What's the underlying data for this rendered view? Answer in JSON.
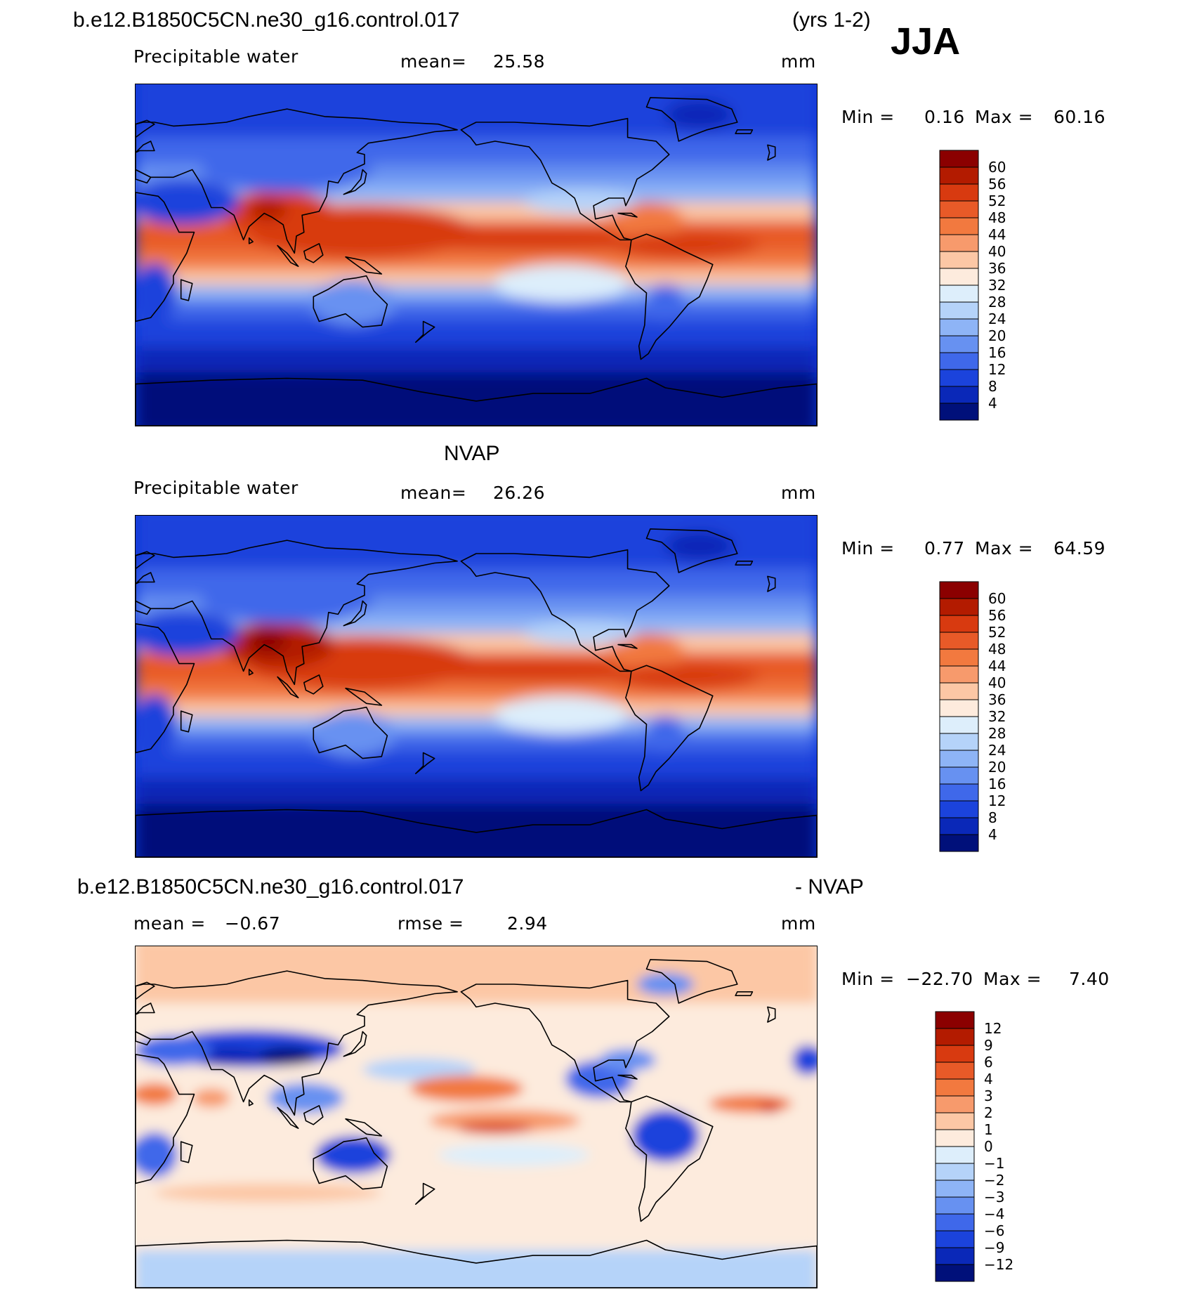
{
  "header": {
    "case_name": "b.e12.B1850C5CN.ne30_g16.control.017",
    "years": "(yrs 1-2)",
    "season": "JJA"
  },
  "panels": [
    {
      "id": "model",
      "title": "",
      "field_label": "Precipitable water",
      "stat_label": "mean=",
      "stat_value": "25.58",
      "units": "mm",
      "min_label": "Min =",
      "min_value": "0.16",
      "max_label": "Max =",
      "max_value": "60.16",
      "colorbar": {
        "labels": [
          "60",
          "56",
          "52",
          "48",
          "44",
          "40",
          "36",
          "32",
          "28",
          "24",
          "20",
          "16",
          "12",
          "8",
          "4"
        ],
        "colors": [
          "#8b0000",
          "#b31b00",
          "#d83a10",
          "#e85a28",
          "#f2793f",
          "#f79a6c",
          "#fcc7a5",
          "#fdebdd",
          "#ddeefb",
          "#b5d3f9",
          "#8eb4f6",
          "#6791f1",
          "#3f68ea",
          "#1b43dc",
          "#0a28b8",
          "#00107a"
        ]
      }
    },
    {
      "id": "obs",
      "title": "NVAP",
      "field_label": "Precipitable water",
      "stat_label": "mean=",
      "stat_value": "26.26",
      "units": "mm",
      "min_label": "Min =",
      "min_value": "0.77",
      "max_label": "Max =",
      "max_value": "64.59",
      "colorbar": {
        "labels": [
          "60",
          "56",
          "52",
          "48",
          "44",
          "40",
          "36",
          "32",
          "28",
          "24",
          "20",
          "16",
          "12",
          "8",
          "4"
        ],
        "colors": [
          "#8b0000",
          "#b31b00",
          "#d83a10",
          "#e85a28",
          "#f2793f",
          "#f79a6c",
          "#fcc7a5",
          "#fdebdd",
          "#ddeefb",
          "#b5d3f9",
          "#8eb4f6",
          "#6791f1",
          "#3f68ea",
          "#1b43dc",
          "#0a28b8",
          "#00107a"
        ]
      }
    },
    {
      "id": "diff",
      "title_left": "b.e12.B1850C5CN.ne30_g16.control.017",
      "title_right": "- NVAP",
      "stat_label": "mean =",
      "stat_value": "−0.67",
      "rmse_label": "rmse =",
      "rmse_value": "2.94",
      "units": "mm",
      "min_label": "Min =",
      "min_value": "−22.70",
      "max_label": "Max =",
      "max_value": "7.40",
      "colorbar": {
        "labels": [
          "12",
          "9",
          "6",
          "4",
          "3",
          "2",
          "1",
          "0",
          "−1",
          "−2",
          "−3",
          "−4",
          "−6",
          "−9",
          "−12"
        ],
        "colors": [
          "#8b0000",
          "#b31b00",
          "#d83a10",
          "#e85a28",
          "#f2793f",
          "#f79a6c",
          "#fcc7a5",
          "#fdebdd",
          "#ddeefb",
          "#b5d3f9",
          "#8eb4f6",
          "#6791f1",
          "#3f68ea",
          "#1b43dc",
          "#0a28b8",
          "#00107a"
        ]
      }
    }
  ],
  "map_colors": {
    "deep_blue": "#00107a",
    "blue": "#1b43dc",
    "mid_blue": "#3f68ea",
    "light_blue": "#8eb4f6",
    "pale_blue": "#ddeefb",
    "pale_orange": "#fcc7a5",
    "orange": "#f2793f",
    "red": "#d83a10",
    "dark_red": "#8b0000",
    "coastline": "#000000"
  }
}
